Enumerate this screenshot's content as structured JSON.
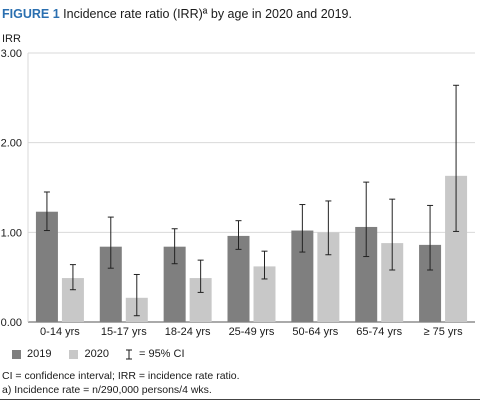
{
  "figure": {
    "label": "FIGURE 1",
    "title": "Incidence rate ratio (IRR)ª by age in 2020 and 2019."
  },
  "chart_data": {
    "type": "bar",
    "title": "Incidence rate ratio (IRR)ª by age in 2020 and 2019.",
    "ylabel": "IRR",
    "xlabel": "",
    "ylim": [
      0,
      3
    ],
    "yticks": [
      "0.00",
      "1.00",
      "2.00",
      "3.00"
    ],
    "grid": true,
    "categories": [
      "0-14 yrs",
      "15-17 yrs",
      "18-24 yrs",
      "25-49 yrs",
      "50-64 yrs",
      "65-74 yrs",
      "≥ 75 yrs"
    ],
    "series": [
      {
        "name": "2019",
        "color": "#7f7f7f",
        "values": [
          1.23,
          0.84,
          0.84,
          0.96,
          1.02,
          1.06,
          0.86
        ],
        "ci_low": [
          1.02,
          0.6,
          0.65,
          0.81,
          0.78,
          0.73,
          0.58
        ],
        "ci_high": [
          1.45,
          1.17,
          1.04,
          1.13,
          1.31,
          1.56,
          1.3
        ]
      },
      {
        "name": "2020",
        "color": "#c8c8c8",
        "values": [
          0.49,
          0.27,
          0.49,
          0.62,
          1.0,
          0.88,
          1.63
        ],
        "ci_low": [
          0.36,
          0.07,
          0.33,
          0.48,
          0.75,
          0.58,
          1.01
        ],
        "ci_high": [
          0.64,
          0.53,
          0.69,
          0.79,
          1.35,
          1.37,
          2.64
        ]
      }
    ],
    "legend": {
      "position": "bottom-left",
      "ci_label": "= 95% CI"
    }
  },
  "footnotes": {
    "line1": "CI = confidence interval; IRR = incidence rate ratio.",
    "line2": "a) Incidence rate = n/290,000 persons/4 wks."
  }
}
